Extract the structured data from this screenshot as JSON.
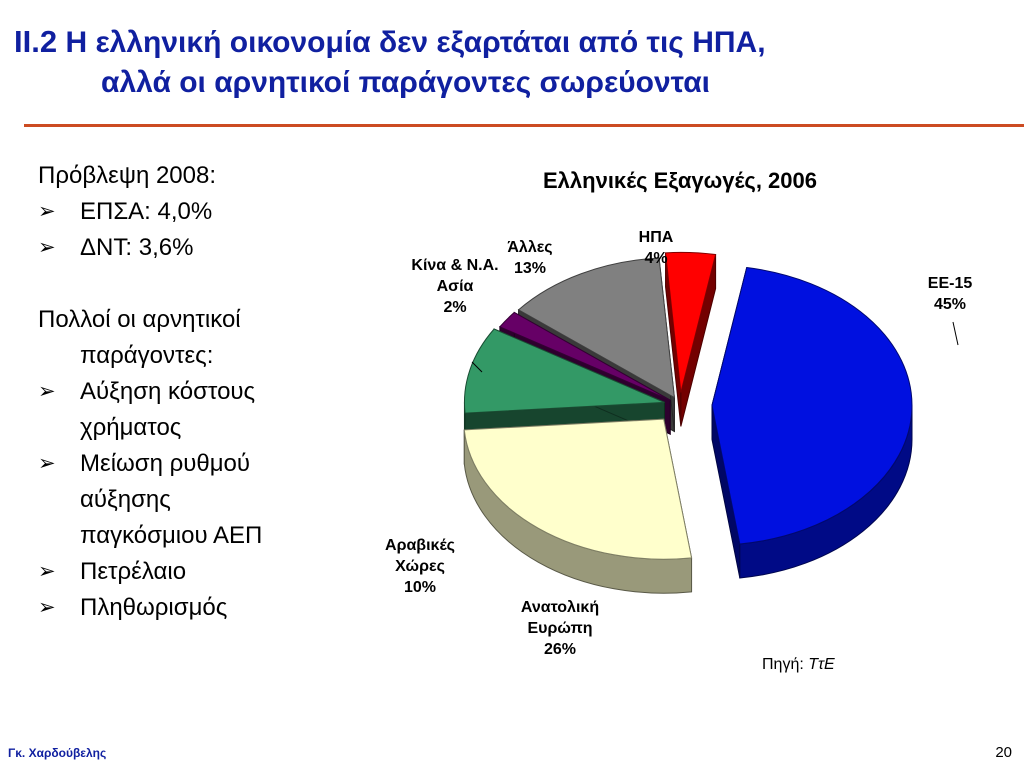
{
  "slide": {
    "title_number": "II.2",
    "title_line1": "Η ελληνική οικονομία δεν εξαρτάται από τις ΗΠΑ,",
    "title_line2": "αλλά οι αρνητικοί παράγοντες σωρεύονται",
    "forecast_heading": "Πρόβλεψη 2008:",
    "forecast_items": [
      "ΕΠΣΑ: 4,0%",
      "ΔΝΤ:   3,6%"
    ],
    "factors_heading_1": "Πολλοί οι αρνητικοί",
    "factors_heading_2": "παράγοντες:",
    "factor_items": [
      [
        "Αύξηση κόστους",
        "χρήματος"
      ],
      [
        "Μείωση ρυθμού",
        "αύξησης",
        "παγκόσμιου ΑΕΠ"
      ],
      [
        "Πετρέλαιο"
      ],
      [
        "Πληθωρισμός"
      ]
    ],
    "source_label": "Πηγή: ",
    "source_value": "ΤτΕ",
    "author": "Γκ. Χαρδούβελης",
    "page_number": "20",
    "bullet_glyph": "➢"
  },
  "chart_data": {
    "type": "pie",
    "title": "Ελληνικές Εξαγωγές, 2006",
    "three_d": true,
    "exploded": true,
    "slices": [
      {
        "label": [
          "ΕΕ-15"
        ],
        "value": 45,
        "value_label": "45%",
        "color": "#0010e0"
      },
      {
        "label": [
          "Ανατολική",
          "Ευρώπη"
        ],
        "value": 26,
        "value_label": "26%",
        "color": "#ffffcc"
      },
      {
        "label": [
          "Αραβικές",
          "Χώρες"
        ],
        "value": 10,
        "value_label": "10%",
        "color": "#339966"
      },
      {
        "label": [
          "Κίνα & Ν.Α.",
          "Ασία"
        ],
        "value": 2,
        "value_label": "2%",
        "color": "#660066"
      },
      {
        "label": [
          "Άλλες"
        ],
        "value": 13,
        "value_label": "13%",
        "color": "#808080"
      },
      {
        "label": [
          "ΗΠΑ"
        ],
        "value": 4,
        "value_label": "4%",
        "color": "#ff0000"
      }
    ]
  }
}
